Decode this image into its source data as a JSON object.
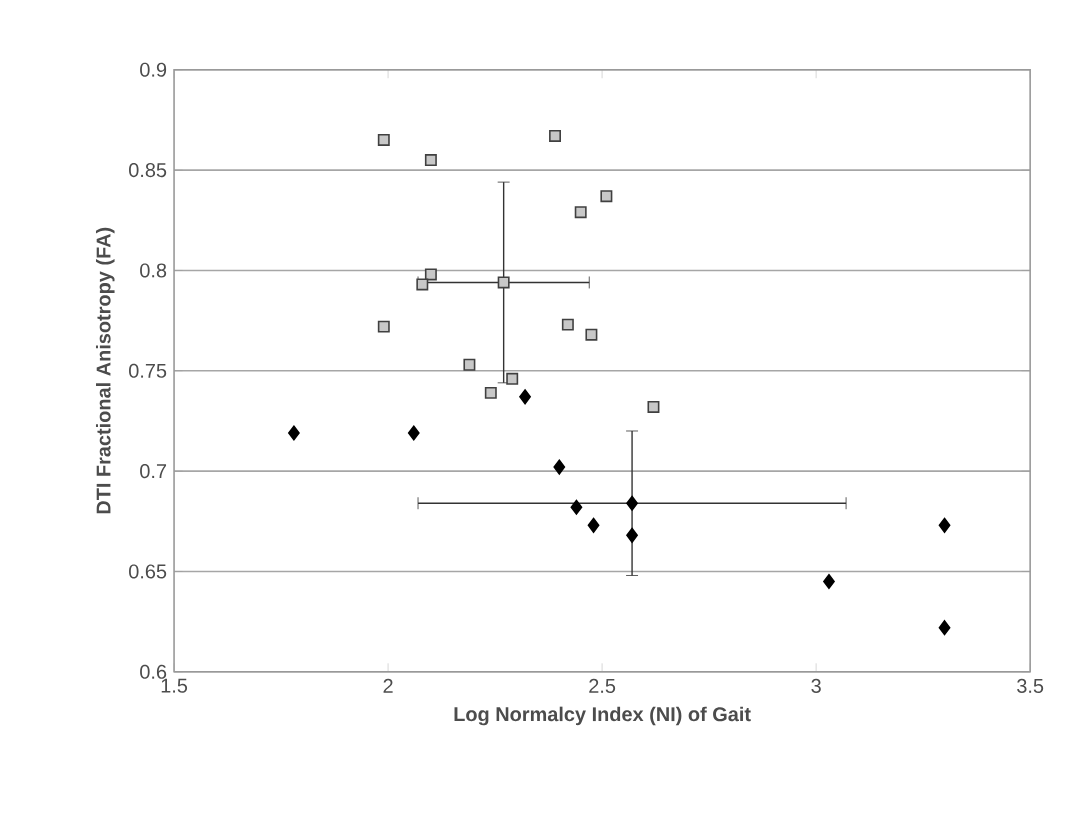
{
  "chart_data": {
    "type": "scatter",
    "xlabel": "Log Normalcy Index (NI) of Gait",
    "ylabel": "DTI Fractional Anisotropy (FA)",
    "xlim": [
      1.5,
      3.5
    ],
    "ylim": [
      0.6,
      0.9
    ],
    "xticks": [
      1.5,
      2,
      2.5,
      3,
      3.5
    ],
    "yticks": [
      0.6,
      0.65,
      0.7,
      0.75,
      0.8,
      0.85,
      0.9
    ],
    "grid": "y",
    "series": [
      {
        "color": "#c8c8c8",
        "marker": "square",
        "x": [
          1.99,
          2.1,
          2.39,
          2.51,
          2.45,
          2.1,
          2.08,
          2.27,
          1.99,
          2.42,
          2.475,
          2.19,
          2.24,
          2.29,
          2.62
        ],
        "values": [
          0.865,
          0.855,
          0.867,
          0.837,
          0.829,
          0.798,
          0.793,
          0.794,
          0.772,
          0.773,
          0.768,
          0.753,
          0.739,
          0.746,
          0.732
        ],
        "errors": [
          null,
          null,
          null,
          null,
          null,
          null,
          null,
          0.05,
          null,
          null,
          null,
          null,
          null,
          null,
          null
        ],
        "xerrors": [
          null,
          null,
          null,
          null,
          null,
          null,
          null,
          0.2,
          null,
          null,
          null,
          null,
          null,
          null,
          null
        ]
      },
      {
        "color": "#000000",
        "marker": "diamond",
        "x": [
          2.32,
          1.78,
          2.06,
          2.4,
          2.44,
          2.48,
          2.57,
          2.57,
          3.03,
          3.3,
          3.3
        ],
        "values": [
          0.737,
          0.719,
          0.719,
          0.702,
          0.682,
          0.673,
          0.684,
          0.668,
          0.645,
          0.673,
          0.622
        ],
        "errors": [
          null,
          null,
          null,
          null,
          null,
          null,
          0.036,
          null,
          null,
          null,
          null
        ],
        "xerrors": [
          null,
          null,
          null,
          null,
          null,
          null,
          0.5,
          null,
          null,
          null,
          null
        ]
      }
    ]
  }
}
